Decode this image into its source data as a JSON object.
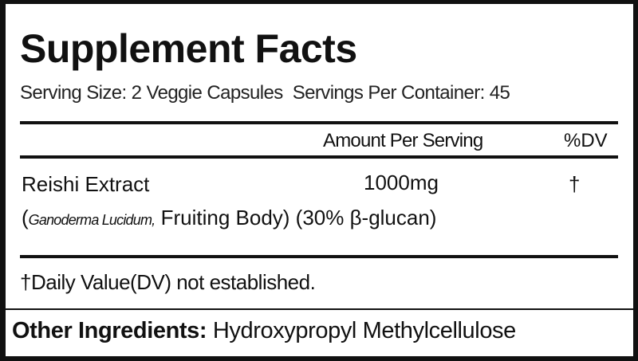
{
  "title": "Supplement Facts",
  "serving_info": "Serving Size: 2 Veggie Capsules  Servings Per Container: 45",
  "table": {
    "headers": {
      "amount": "Amount Per Serving",
      "dv": "%DV"
    },
    "rows": [
      {
        "name": "Reishi Extract",
        "amount": "1000mg",
        "dv": "†",
        "detail_open": "(",
        "detail_latin": "Ganoderma Lucidum,",
        "detail_rest": " Fruiting Body) (30% β-glucan)"
      }
    ]
  },
  "footnote": "†Daily Value(DV) not established.",
  "other_ingredients": {
    "label": "Other Ingredients:",
    "value": " Hydroxypropyl Methylcellulose"
  }
}
